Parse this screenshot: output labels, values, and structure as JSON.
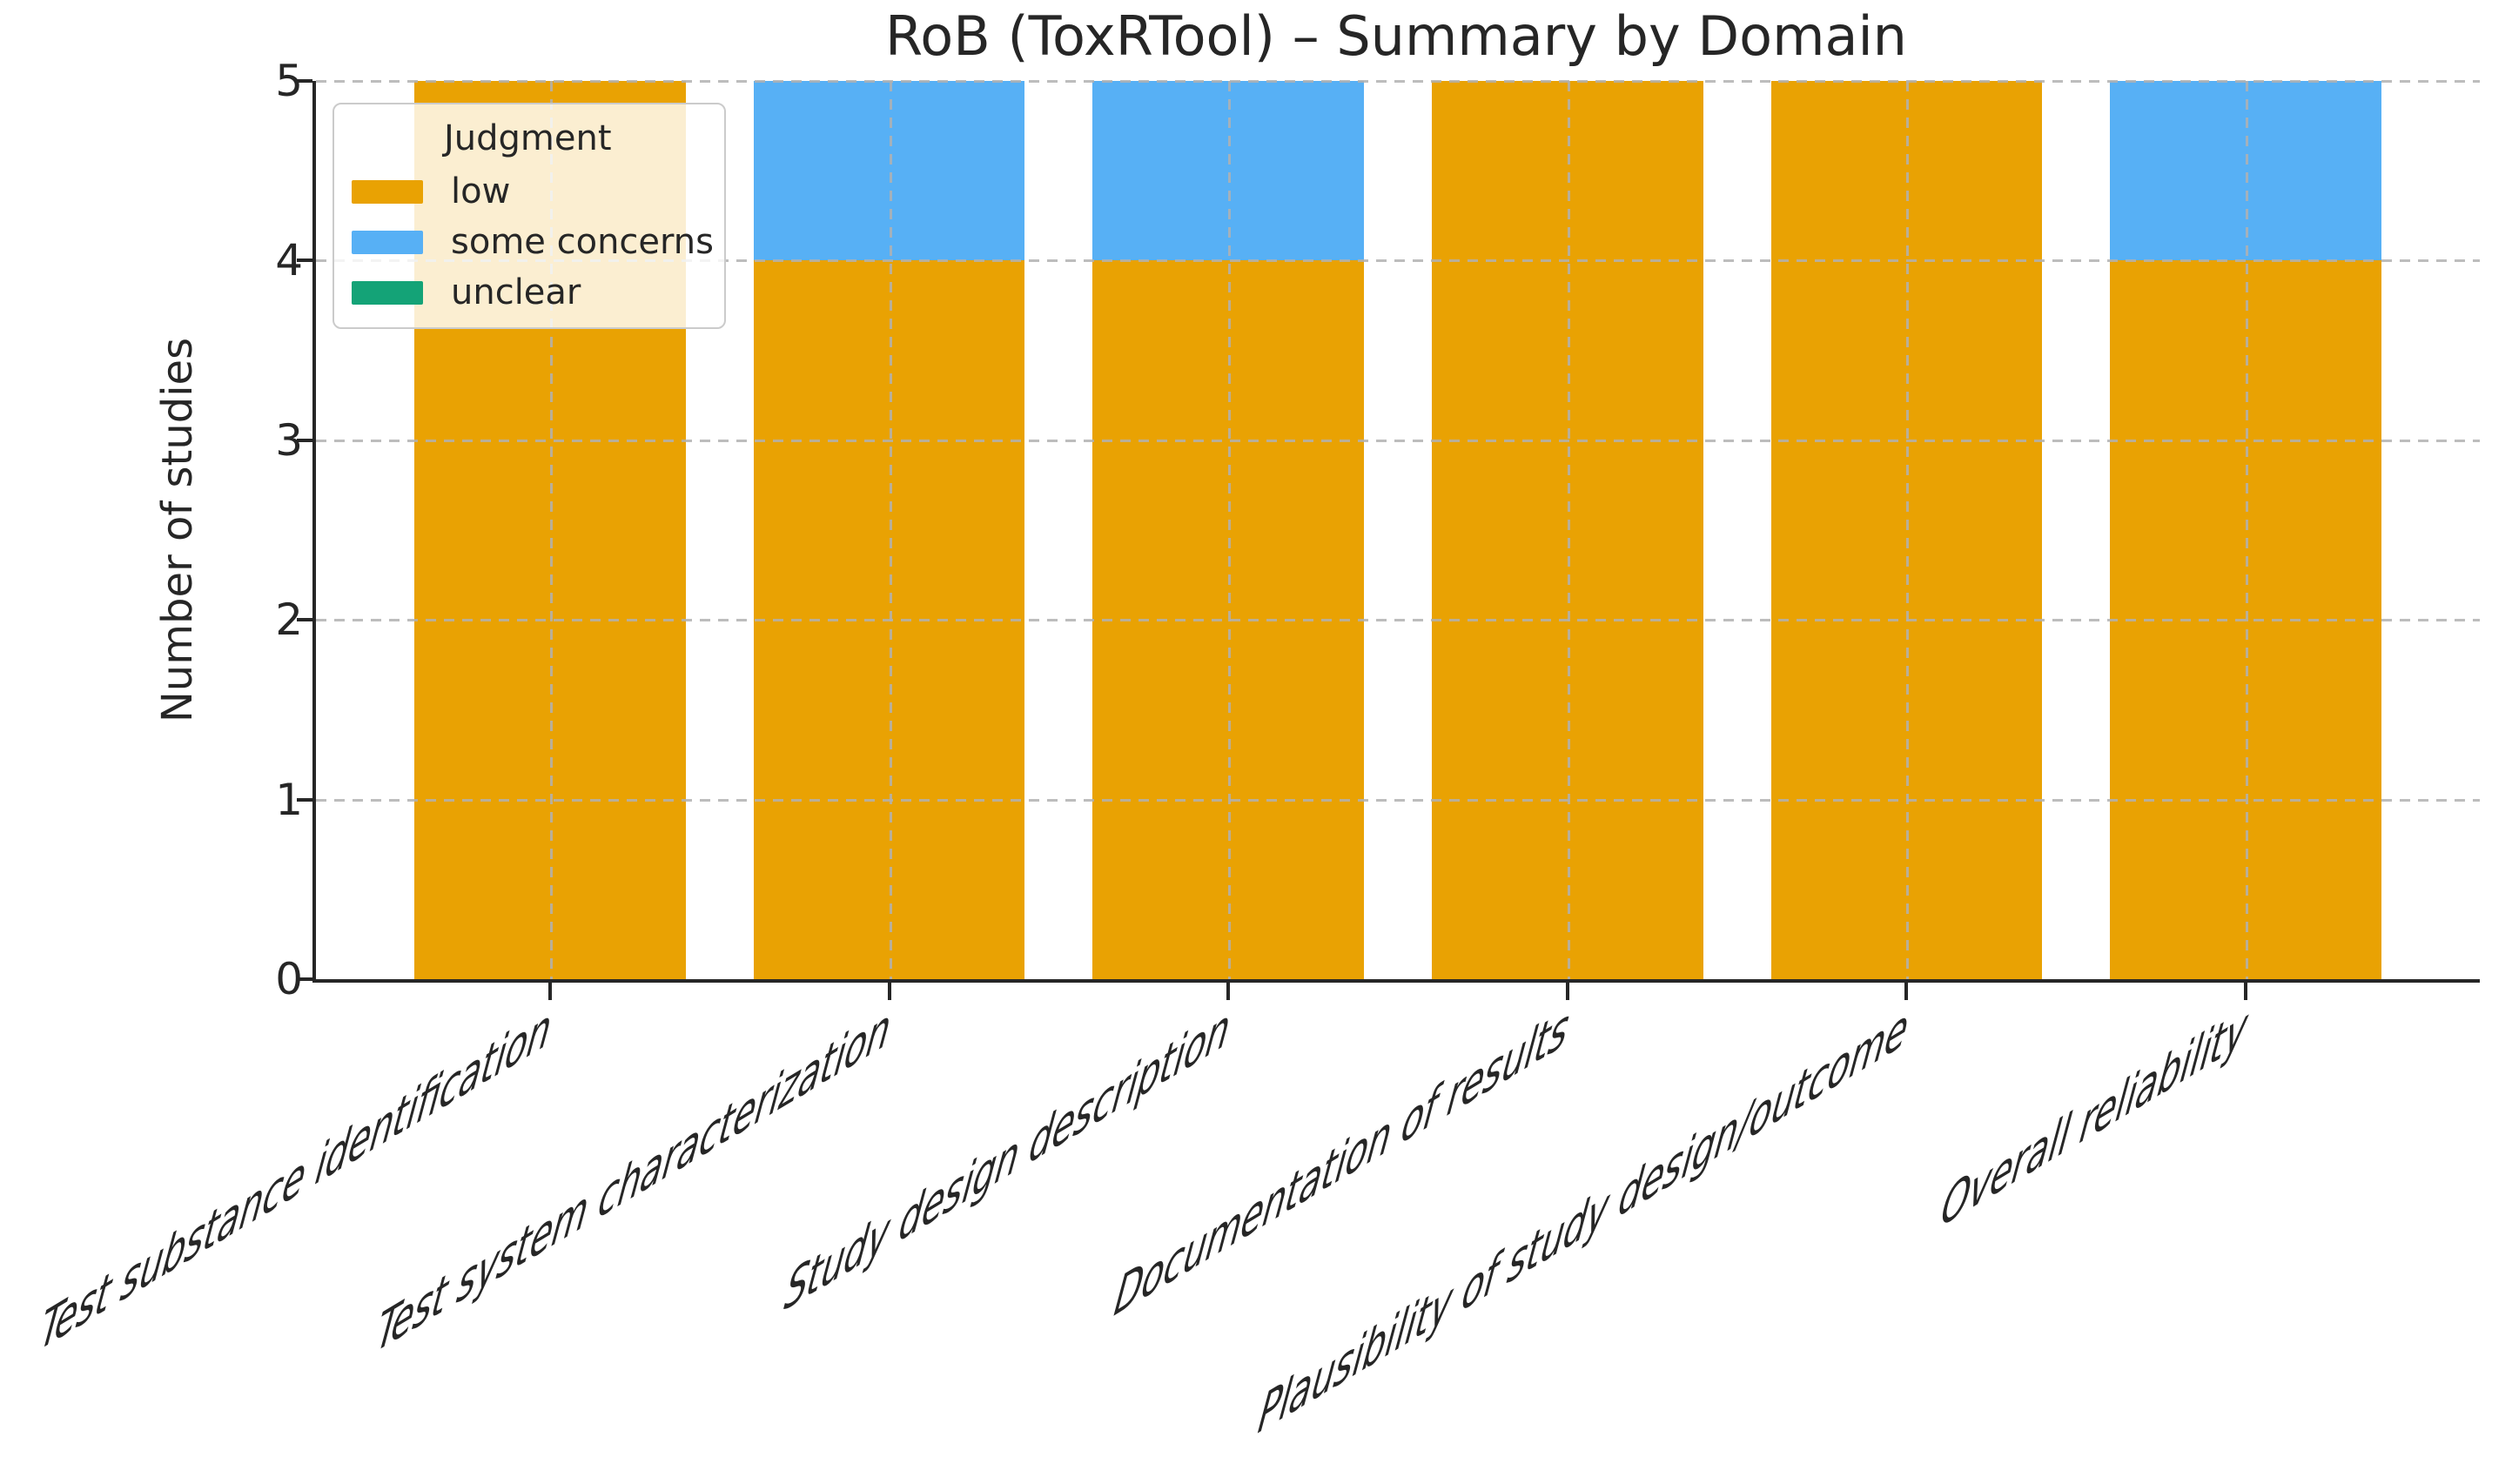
{
  "chart_data": {
    "type": "bar",
    "stacked": true,
    "title": "RoB (ToxRTool) – Summary by Domain",
    "ylabel": "Number of studies",
    "xlabel": "",
    "categories": [
      "Test substance identification",
      "Test system characterization",
      "Study design description",
      "Documentation of results",
      "Plausibility of study design/outcome",
      "Overall reliability"
    ],
    "series": [
      {
        "name": "low",
        "color": "#E9A203",
        "values": [
          5,
          4,
          4,
          5,
          5,
          4
        ]
      },
      {
        "name": "some concerns",
        "color": "#57B0F5",
        "values": [
          0,
          1,
          1,
          0,
          0,
          1
        ]
      },
      {
        "name": "unclear",
        "color": "#14A377",
        "values": [
          0,
          0,
          0,
          0,
          0,
          0
        ]
      }
    ],
    "legend_title": "Judgment",
    "legend_position": "upper left",
    "ylim": [
      0,
      5
    ],
    "yticks": [
      0,
      1,
      2,
      3,
      4,
      5
    ],
    "grid": true,
    "grid_style": "dashed",
    "grid_color": "#b1b1b1",
    "text_color": "#262626",
    "background_color": "#ffffff"
  }
}
